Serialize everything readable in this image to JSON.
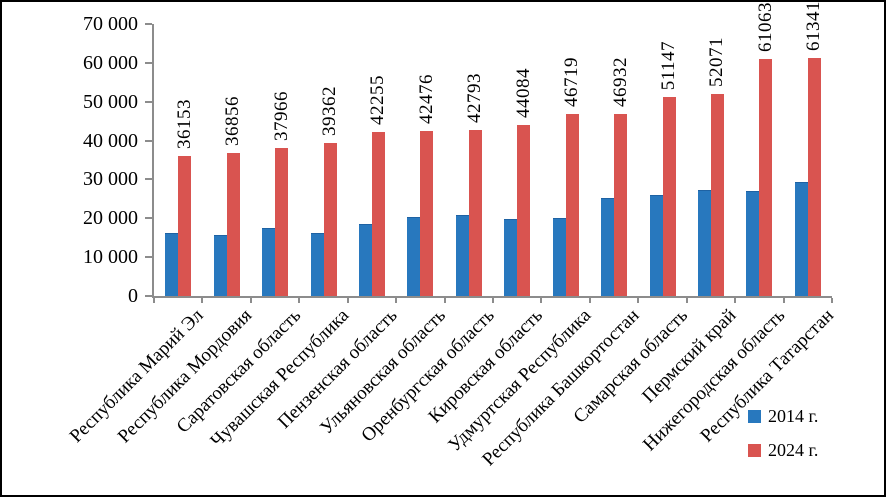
{
  "chart_data": {
    "type": "bar",
    "title": "",
    "xlabel": "",
    "ylabel": "",
    "ylim": [
      0,
      70000
    ],
    "grid": false,
    "legend_position": "bottom-right",
    "y_tick_labels": [
      "0",
      "10 000",
      "20 000",
      "30 000",
      "40 000",
      "50 000",
      "60 000",
      "70 000"
    ],
    "categories": [
      "Республика Марий Эл",
      "Республика Мордовия",
      "Саратовская область",
      "Чувашская Республика",
      "Пензенская область",
      "Ульяновская область",
      "Оренбургская область",
      "Кировская область",
      "Удмуртская Республика",
      "Республика Башкортостан",
      "Самарская область",
      "Пермский край",
      "Нижегородская область",
      "Республика Татарстан"
    ],
    "series": [
      {
        "name": "2014 г.",
        "color": "#2878BE",
        "values": [
          16100,
          15700,
          17400,
          16100,
          18600,
          20300,
          20800,
          19900,
          20200,
          25200,
          26000,
          27200,
          27000,
          29300
        ],
        "data_labels": false
      },
      {
        "name": "2024 г.",
        "color": "#D95450",
        "values": [
          36153,
          36856,
          37966,
          39362,
          42255,
          42476,
          42793,
          44084,
          46719,
          46932,
          51147,
          52071,
          61063,
          61341
        ],
        "data_labels": true
      }
    ],
    "colors": {
      "axis": "#8C8C8C",
      "text": "#000000",
      "background": "#FFFFFF",
      "border": "#000000"
    }
  }
}
